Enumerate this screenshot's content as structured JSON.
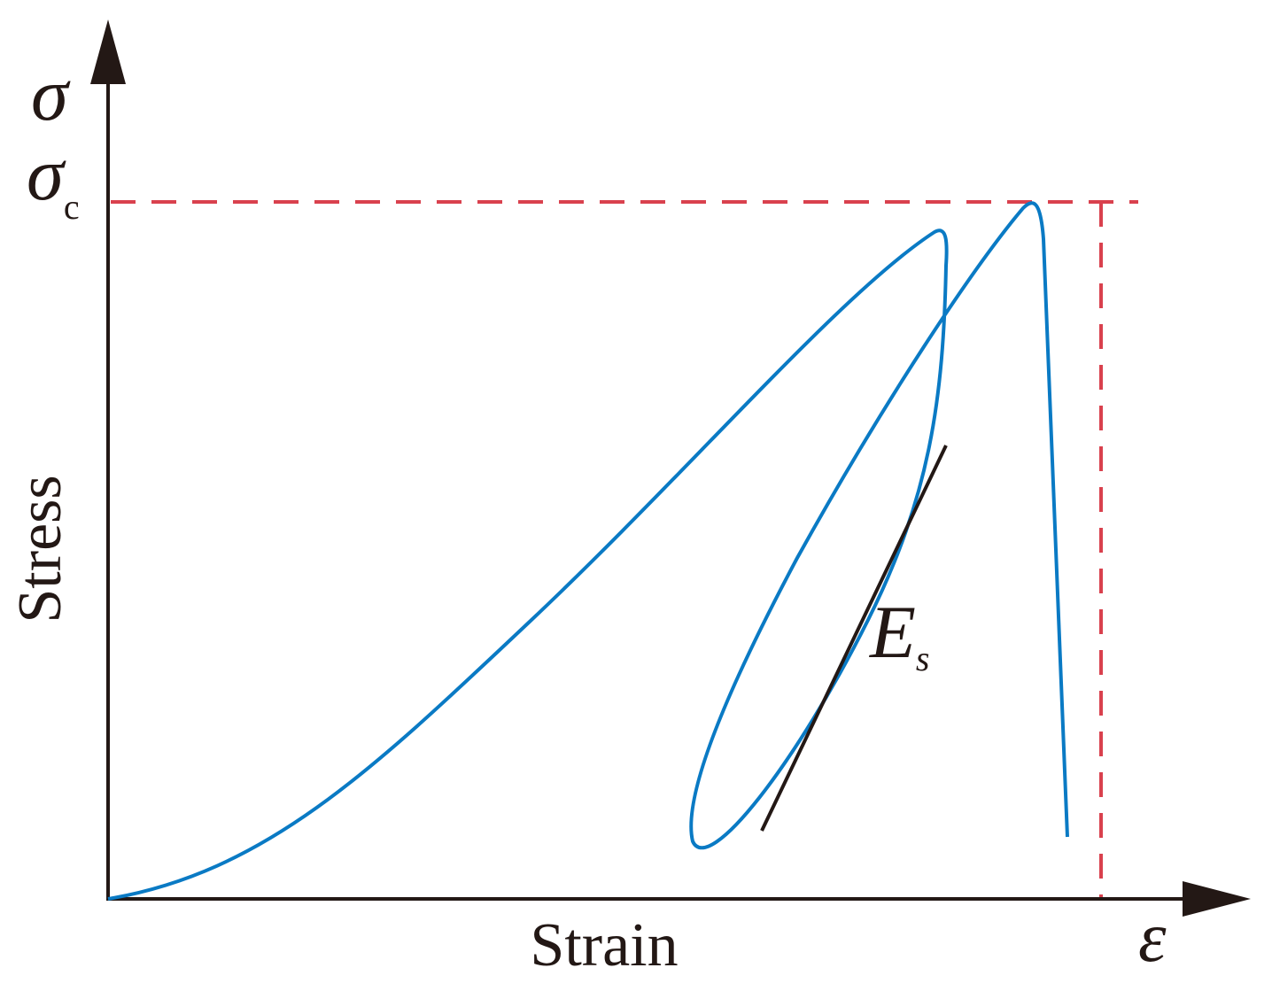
{
  "axes": {
    "y_symbol": "σ",
    "y_label": "Stress",
    "x_label": "Strain",
    "x_symbol": "ε"
  },
  "annotations": {
    "peak_symbol": "σ",
    "peak_subscript": "c",
    "modulus_symbol": "E",
    "modulus_subscript": "s"
  }
}
